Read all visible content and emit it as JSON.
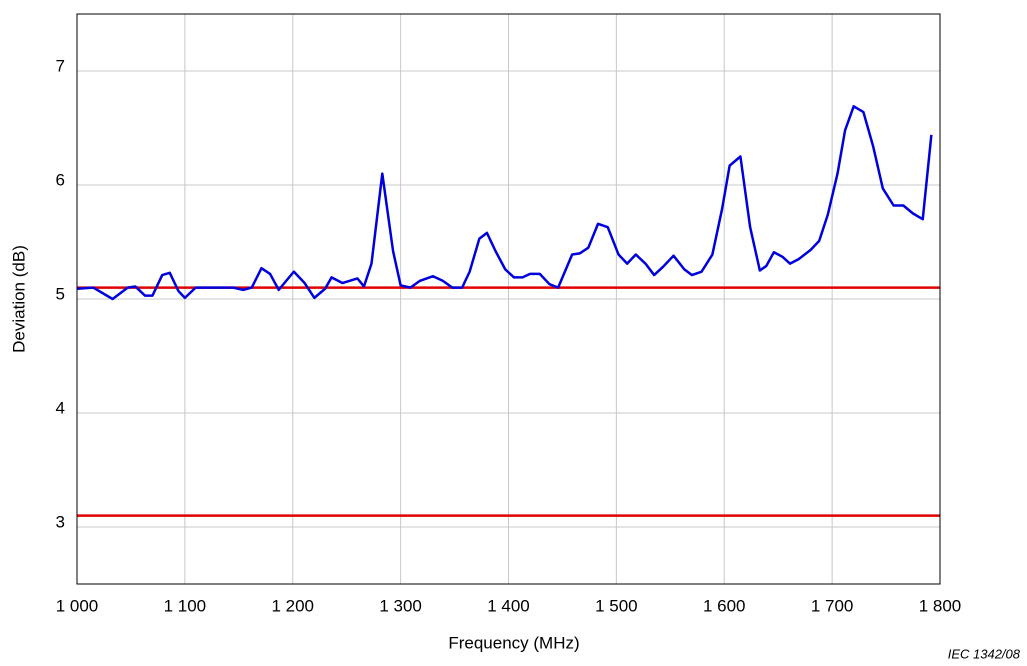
{
  "chart_data": {
    "type": "line",
    "xlabel": "Frequency   (MHz)",
    "ylabel": "Deviation   (dB)",
    "footnote": "IEC  1342/08",
    "x": [
      1000,
      1015,
      1033,
      1047,
      1054,
      1063,
      1070,
      1079,
      1086,
      1094,
      1100,
      1110,
      1123,
      1138,
      1145,
      1154,
      1162,
      1171,
      1179,
      1187,
      1201,
      1211,
      1220,
      1230,
      1236,
      1246,
      1260,
      1266,
      1273,
      1283,
      1293,
      1300,
      1309,
      1318,
      1330,
      1339,
      1348,
      1357,
      1364,
      1373,
      1380,
      1388,
      1397,
      1405,
      1413,
      1420,
      1429,
      1438,
      1446,
      1459,
      1466,
      1474,
      1483,
      1492,
      1502,
      1510,
      1518,
      1527,
      1535,
      1543,
      1553,
      1563,
      1570,
      1579,
      1589,
      1598,
      1605,
      1615,
      1624,
      1633,
      1639,
      1646,
      1654,
      1661,
      1669,
      1680,
      1688,
      1696,
      1705,
      1712,
      1720,
      1729,
      1738,
      1747,
      1757,
      1766,
      1775,
      1784,
      1792
    ],
    "series": [
      {
        "color": "#0000dd",
        "values": [
          5.09,
          5.1,
          5.0,
          5.1,
          5.11,
          5.03,
          5.03,
          5.21,
          5.23,
          5.07,
          5.01,
          5.1,
          5.1,
          5.1,
          5.1,
          5.08,
          5.1,
          5.27,
          5.22,
          5.08,
          5.24,
          5.14,
          5.01,
          5.09,
          5.19,
          5.14,
          5.18,
          5.11,
          5.31,
          6.1,
          5.42,
          5.12,
          5.1,
          5.16,
          5.2,
          5.16,
          5.1,
          5.1,
          5.24,
          5.53,
          5.58,
          5.42,
          5.26,
          5.19,
          5.19,
          5.22,
          5.22,
          5.13,
          5.1,
          5.39,
          5.4,
          5.45,
          5.66,
          5.63,
          5.39,
          5.31,
          5.39,
          5.31,
          5.21,
          5.28,
          5.38,
          5.26,
          5.21,
          5.24,
          5.39,
          5.79,
          6.17,
          6.25,
          5.63,
          5.25,
          5.29,
          5.41,
          5.37,
          5.31,
          5.35,
          5.43,
          5.51,
          5.74,
          6.1,
          6.48,
          6.69,
          6.64,
          6.34,
          5.97,
          5.82,
          5.82,
          5.75,
          5.7,
          6.44
        ]
      }
    ],
    "reference_lines": [
      5.1,
      3.1
    ],
    "reference_color": "#e00000",
    "xlim": [
      1000,
      1800
    ],
    "ylim": [
      2.5,
      7.5
    ],
    "xticks": [
      {
        "value": 1000,
        "label": "1 000"
      },
      {
        "value": 1100,
        "label": "1 100"
      },
      {
        "value": 1200,
        "label": "1 200"
      },
      {
        "value": 1300,
        "label": "1 300"
      },
      {
        "value": 1400,
        "label": "1 400"
      },
      {
        "value": 1500,
        "label": "1 500"
      },
      {
        "value": 1600,
        "label": "1 600"
      },
      {
        "value": 1700,
        "label": "1 700"
      },
      {
        "value": 1800,
        "label": "1 800"
      }
    ],
    "yticks": [
      3,
      4,
      5,
      6,
      7
    ],
    "grid": true
  }
}
